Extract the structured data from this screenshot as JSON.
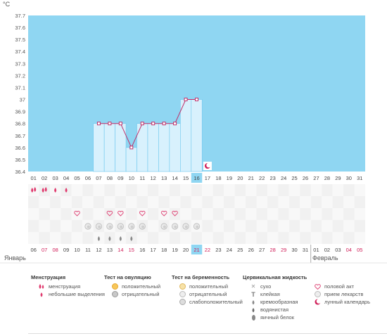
{
  "chart_data": {
    "type": "line",
    "title": "",
    "ylabel": "°C",
    "ylim": [
      36.4,
      37.7
    ],
    "y_ticks": [
      "37.7",
      "37.6",
      "37.5",
      "37.4",
      "37.3",
      "37.2",
      "37.1",
      "37",
      "36.9",
      "36.8",
      "36.7",
      "36.6",
      "36.5",
      "36.4"
    ],
    "cycle_days": [
      "01",
      "02",
      "03",
      "04",
      "05",
      "06",
      "07",
      "08",
      "09",
      "10",
      "11",
      "12",
      "13",
      "14",
      "15",
      "16",
      "17",
      "18",
      "19",
      "20",
      "21",
      "22",
      "23",
      "24",
      "25",
      "26",
      "27",
      "28",
      "29",
      "30",
      "31"
    ],
    "highlight_day": "16",
    "series": [
      {
        "x": [
          7,
          8,
          9,
          10,
          11,
          12,
          13,
          14,
          15,
          16
        ],
        "values": [
          36.8,
          36.8,
          36.8,
          36.6,
          36.8,
          36.8,
          36.8,
          36.8,
          37.0,
          37.0
        ]
      }
    ],
    "dates": [
      {
        "label": "06",
        "weekend": false
      },
      {
        "label": "07",
        "weekend": true
      },
      {
        "label": "08",
        "weekend": true
      },
      {
        "label": "09",
        "weekend": false
      },
      {
        "label": "10",
        "weekend": false
      },
      {
        "label": "11",
        "weekend": false
      },
      {
        "label": "12",
        "weekend": false
      },
      {
        "label": "13",
        "weekend": false
      },
      {
        "label": "14",
        "weekend": true
      },
      {
        "label": "15",
        "weekend": true
      },
      {
        "label": "16",
        "weekend": false
      },
      {
        "label": "17",
        "weekend": false
      },
      {
        "label": "18",
        "weekend": false
      },
      {
        "label": "19",
        "weekend": false
      },
      {
        "label": "20",
        "weekend": false
      },
      {
        "label": "21",
        "weekend": true
      },
      {
        "label": "22",
        "weekend": true
      },
      {
        "label": "23",
        "weekend": false
      },
      {
        "label": "24",
        "weekend": false
      },
      {
        "label": "25",
        "weekend": false
      },
      {
        "label": "26",
        "weekend": false
      },
      {
        "label": "27",
        "weekend": false
      },
      {
        "label": "28",
        "weekend": true
      },
      {
        "label": "29",
        "weekend": true
      },
      {
        "label": "30",
        "weekend": false
      },
      {
        "label": "31",
        "weekend": false
      },
      {
        "label": "01",
        "weekend": false
      },
      {
        "label": "02",
        "weekend": false
      },
      {
        "label": "03",
        "weekend": false
      },
      {
        "label": "04",
        "weekend": true
      },
      {
        "label": "05",
        "weekend": true
      }
    ],
    "highlight_date": "21",
    "month_labels": {
      "left": "Январь",
      "right": "Февраль"
    },
    "markers": {
      "menstruation_heavy": [
        1,
        2
      ],
      "menstruation_light": [
        3,
        4
      ],
      "intercourse": [
        5,
        8,
        9,
        11,
        13,
        14
      ],
      "pregnancy_negative": [
        6,
        7,
        8,
        9,
        10,
        11,
        13,
        14,
        15,
        16
      ],
      "fluid_creamy": [
        7,
        8,
        9,
        10
      ],
      "lunar_day": 17
    }
  },
  "legend": {
    "menstruation": {
      "title": "Менструация",
      "items": [
        {
          "label": "менструация"
        },
        {
          "label": "небольшие выделения"
        }
      ]
    },
    "ovulation": {
      "title": "Тест на овуляцию",
      "items": [
        {
          "label": "положительный"
        },
        {
          "label": "отрицательный"
        }
      ]
    },
    "pregnancy": {
      "title": "Тест на беременность",
      "items": [
        {
          "label": "положительный"
        },
        {
          "label": "отрицательный"
        },
        {
          "label": "слабоположительный"
        }
      ]
    },
    "cervical": {
      "title": "Цервикальная жидкость",
      "items": [
        {
          "label": "сухо"
        },
        {
          "label": "клейкая"
        },
        {
          "label": "кремообразная"
        },
        {
          "label": "водянистая"
        },
        {
          "label": "яичный белок"
        }
      ]
    },
    "other": {
      "items": [
        {
          "label": "половой акт"
        },
        {
          "label": "прием лекарств"
        },
        {
          "label": "лунный календарь"
        }
      ]
    }
  },
  "colors": {
    "plot_bg": "#8fd6f2",
    "bar_fill": "#d8f1fd",
    "bar_stroke": "#6fc8ee",
    "line": "#c0306a",
    "weekend": "#d0205a",
    "highlight": "#8fd6f2",
    "grid_row": "#f4f4f4"
  }
}
